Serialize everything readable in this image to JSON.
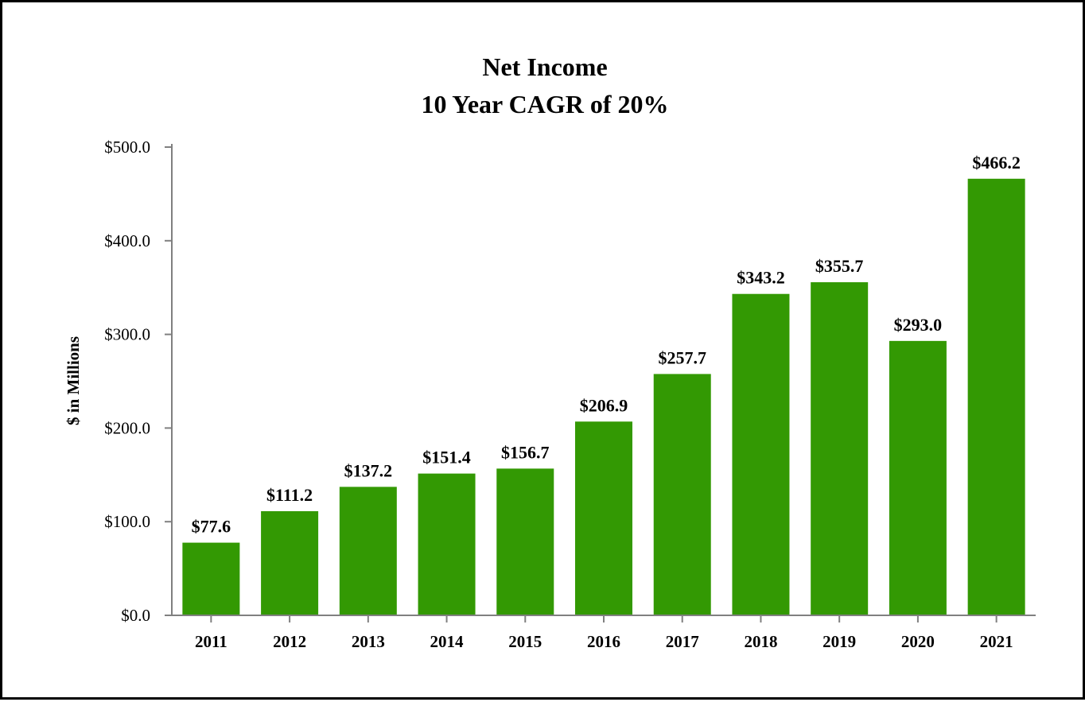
{
  "colors": {
    "bar": "#339903",
    "axis": "#808080",
    "text": "#000000",
    "border": "#000000",
    "background": "#ffffff"
  },
  "chart_data": {
    "type": "bar",
    "title": "Net Income",
    "subtitle": "10 Year CAGR of 20%",
    "xlabel": "",
    "ylabel": "$ in Millions",
    "categories": [
      "2011",
      "2012",
      "2013",
      "2014",
      "2015",
      "2016",
      "2017",
      "2018",
      "2019",
      "2020",
      "2021"
    ],
    "values": [
      77.6,
      111.2,
      137.2,
      151.4,
      156.7,
      206.9,
      257.7,
      343.2,
      355.7,
      293.0,
      466.2
    ],
    "value_labels": [
      "$77.6",
      "$111.2",
      "$137.2",
      "$151.4",
      "$156.7",
      "$206.9",
      "$257.7",
      "$343.2",
      "$355.7",
      "$293.0",
      "$466.2"
    ],
    "yticks": [
      0,
      100,
      200,
      300,
      400,
      500
    ],
    "ytick_labels": [
      "$0.0",
      "$100.0",
      "$200.0",
      "$300.0",
      "$400.0",
      "$500.0"
    ],
    "ylim": [
      0,
      500
    ],
    "grid": false,
    "legend": "none"
  }
}
